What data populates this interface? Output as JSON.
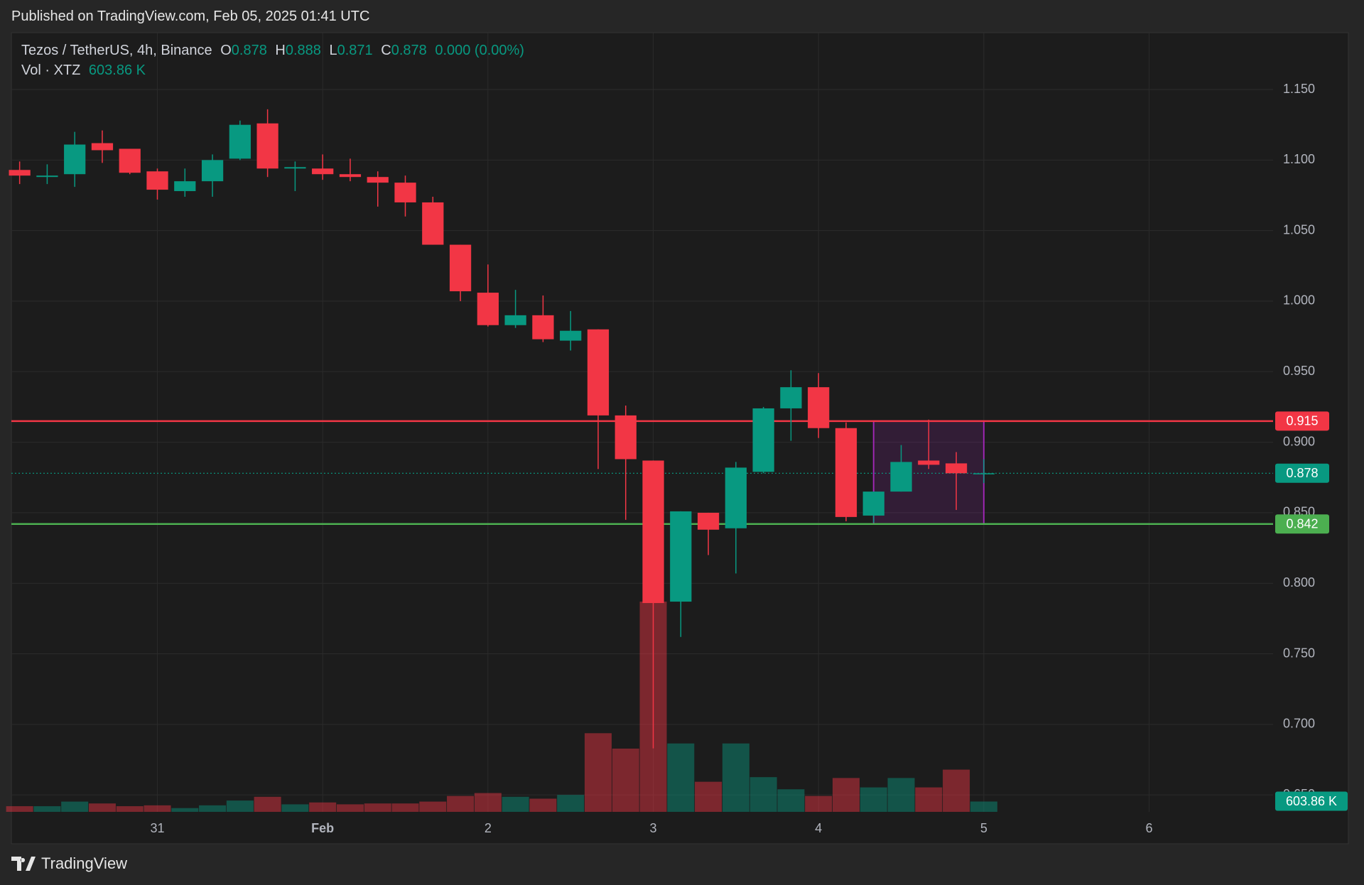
{
  "header": "Published on TradingView.com, Feb 05, 2025 01:41 UTC",
  "footer": "TradingView",
  "chart_data": {
    "type": "candlestick",
    "symbol": "Tezos / TetherUS, 4h, Binance",
    "ohlc_labels": [
      "O",
      "H",
      "L",
      "C"
    ],
    "change": "0.000 (0.00%)",
    "volume_name": "Vol · XTZ",
    "volume_label": "603.86 K",
    "open": [
      1.093,
      1.088,
      1.09,
      1.112,
      1.108,
      1.092,
      1.078,
      1.085,
      1.101,
      1.126,
      1.094,
      1.094,
      1.09,
      1.088,
      1.084,
      1.07,
      1.04,
      1.006,
      0.983,
      0.99,
      0.972,
      0.98,
      0.919,
      0.887,
      0.787,
      0.85,
      0.839,
      0.879,
      0.924,
      0.939,
      0.91,
      0.848,
      0.865,
      0.887,
      0.885,
      0.878
    ],
    "high": [
      1.099,
      1.097,
      1.12,
      1.121,
      1.108,
      1.094,
      1.094,
      1.104,
      1.128,
      1.136,
      1.099,
      1.104,
      1.101,
      1.092,
      1.089,
      1.074,
      1.04,
      1.026,
      1.008,
      1.004,
      0.993,
      0.98,
      0.926,
      0.887,
      0.851,
      0.85,
      0.886,
      0.925,
      0.951,
      0.949,
      0.914,
      0.865,
      0.898,
      0.916,
      0.893,
      0.888
    ],
    "low": [
      1.083,
      1.083,
      1.081,
      1.098,
      1.09,
      1.072,
      1.074,
      1.074,
      1.1,
      1.088,
      1.078,
      1.086,
      1.085,
      1.067,
      1.06,
      1.04,
      1.0,
      0.982,
      0.981,
      0.971,
      0.965,
      0.881,
      0.845,
      0.683,
      0.762,
      0.82,
      0.807,
      0.878,
      0.901,
      0.903,
      0.844,
      0.843,
      0.865,
      0.881,
      0.852,
      0.871
    ],
    "close": [
      1.089,
      1.089,
      1.111,
      1.107,
      1.091,
      1.079,
      1.085,
      1.1,
      1.125,
      1.094,
      1.095,
      1.09,
      1.088,
      1.084,
      1.07,
      1.04,
      1.007,
      0.983,
      0.99,
      0.973,
      0.979,
      0.919,
      0.888,
      0.786,
      0.851,
      0.838,
      0.882,
      0.924,
      0.939,
      0.91,
      0.847,
      0.865,
      0.886,
      0.884,
      0.878,
      0.878
    ],
    "volume": [
      330000,
      330000,
      600000,
      490000,
      330000,
      380000,
      220000,
      380000,
      660000,
      880000,
      440000,
      550000,
      440000,
      490000,
      490000,
      600000,
      930000,
      1100000,
      880000,
      770000,
      990000,
      4600000,
      3700000,
      12300000,
      4000000,
      1760000,
      4000000,
      2030000,
      1320000,
      930000,
      1980000,
      1430000,
      1980000,
      1430000,
      2470000,
      603860
    ],
    "up_color": "#089981",
    "down_color": "#f23645",
    "xlim": [
      -0.3,
      45.5
    ],
    "xticks": [
      {
        "value": 5,
        "label": "31"
      },
      {
        "value": 11,
        "label": "Feb"
      },
      {
        "value": 17,
        "label": "2"
      },
      {
        "value": 23,
        "label": "3"
      },
      {
        "value": 29,
        "label": "4"
      },
      {
        "value": 35,
        "label": "5"
      },
      {
        "value": 41,
        "label": "6"
      }
    ],
    "ylim": [
      0.638,
      1.19
    ],
    "yticks": [
      {
        "value": 0.65,
        "label": "0.650"
      },
      {
        "value": 0.7,
        "label": "0.700"
      },
      {
        "value": 0.75,
        "label": "0.750"
      },
      {
        "value": 0.8,
        "label": "0.800"
      },
      {
        "value": 0.85,
        "label": "0.850"
      },
      {
        "value": 0.9,
        "label": "0.900"
      },
      {
        "value": 0.95,
        "label": "0.950"
      },
      {
        "value": 1.0,
        "label": "1.000"
      },
      {
        "value": 1.05,
        "label": "1.050"
      },
      {
        "value": 1.1,
        "label": "1.100"
      },
      {
        "value": 1.15,
        "label": "1.150"
      }
    ],
    "grid": true,
    "hlines": [
      {
        "value": 0.915,
        "color": "#f23645"
      },
      {
        "value": 0.842,
        "color": "#4caf50"
      }
    ],
    "box": {
      "x": [
        31,
        35
      ],
      "y": [
        0.842,
        0.915
      ],
      "color": "#9c27b0"
    }
  }
}
